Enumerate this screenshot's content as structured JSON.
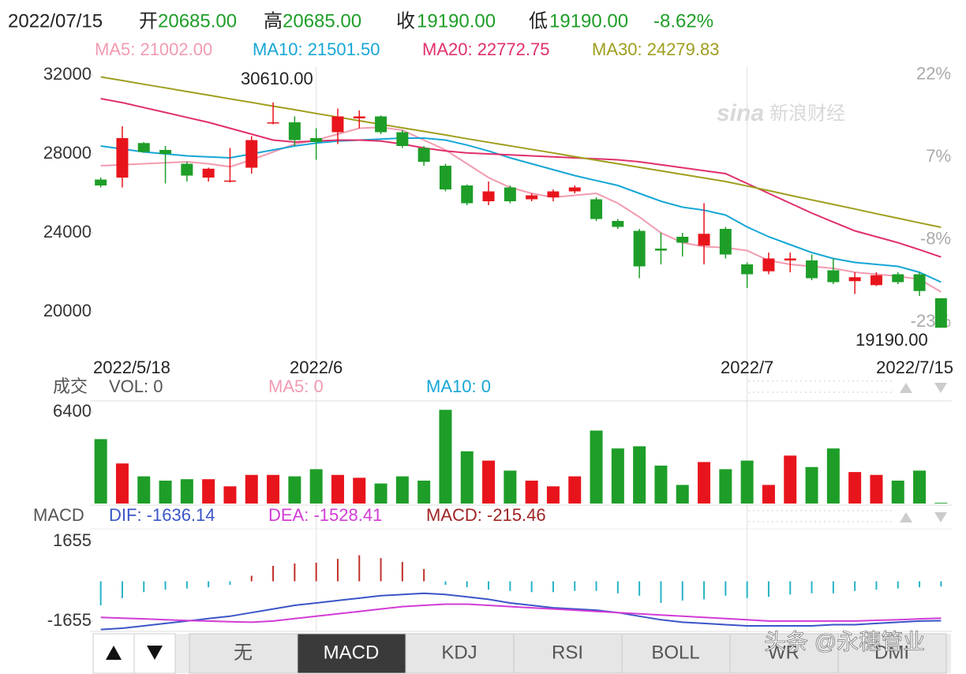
{
  "header": {
    "date": "2022/07/15",
    "items": [
      {
        "label": "开",
        "value": "20685.00"
      },
      {
        "label": "高",
        "value": "20685.00"
      },
      {
        "label": "收",
        "value": "19190.00"
      },
      {
        "label": "低",
        "value": "19190.00"
      }
    ],
    "change": "-8.62%"
  },
  "watermark": {
    "brand": "sina",
    "name": "新浪财经",
    "overlay": "头条 @永穗管业"
  },
  "chart_data": [
    {
      "type": "candlestick",
      "categories": [
        "2022/5/18",
        null,
        null,
        null,
        null,
        null,
        null,
        null,
        null,
        null,
        "2022/6",
        null,
        null,
        null,
        null,
        null,
        null,
        null,
        null,
        null,
        null,
        null,
        null,
        null,
        null,
        null,
        null,
        null,
        null,
        null,
        "2022/7",
        null,
        null,
        null,
        null,
        null,
        null,
        null,
        null,
        "2022/7/15"
      ],
      "open": [
        26700,
        26800,
        28550,
        28200,
        27500,
        26800,
        26600,
        27300,
        29550,
        29600,
        28800,
        29100,
        29800,
        29900,
        29100,
        28300,
        27400,
        26400,
        25600,
        26300,
        25700,
        25800,
        26100,
        25700,
        24600,
        24100,
        23200,
        23800,
        23350,
        24200,
        22400,
        22050,
        22600,
        22600,
        22100,
        21550,
        21350,
        21900,
        21900,
        20685
      ],
      "high": [
        26800,
        29400,
        28600,
        28400,
        27600,
        27300,
        28300,
        28900,
        30610,
        29900,
        29300,
        30300,
        30200,
        29950,
        29200,
        28400,
        27500,
        26450,
        26600,
        26400,
        26000,
        26200,
        26400,
        25800,
        24700,
        24200,
        24000,
        24000,
        25500,
        24300,
        22500,
        23000,
        23000,
        22900,
        22700,
        22000,
        22000,
        22000,
        22000,
        20685
      ],
      "low": [
        26300,
        26300,
        28050,
        26500,
        26600,
        26600,
        26550,
        27000,
        29500,
        28400,
        27700,
        28500,
        29300,
        29000,
        28300,
        27400,
        26100,
        25400,
        25400,
        25500,
        25600,
        25600,
        26000,
        24600,
        24200,
        21700,
        22400,
        22800,
        22400,
        22700,
        21200,
        21900,
        22000,
        21600,
        21400,
        20900,
        21300,
        21400,
        20800,
        19190
      ],
      "close": [
        26400,
        28800,
        28100,
        28000,
        26900,
        27250,
        26650,
        28700,
        29600,
        28700,
        28600,
        29900,
        29900,
        29100,
        28400,
        27600,
        26200,
        25500,
        26100,
        25600,
        25900,
        26100,
        26300,
        24700,
        24300,
        22300,
        23100,
        23500,
        23950,
        22900,
        21900,
        22700,
        22700,
        21700,
        21500,
        21750,
        21850,
        21500,
        21050,
        19190
      ],
      "up_color": "#e8141c",
      "down_color": "#1e9e28",
      "ylim": [
        19000,
        32400
      ],
      "yticks": [
        20000,
        24000,
        28000,
        32000
      ],
      "y2lim": [
        -24.7,
        23.4
      ],
      "y2ticks": [
        {
          "value": 22,
          "label": "22%"
        },
        {
          "value": 7,
          "label": "7%"
        },
        {
          "value": -8,
          "label": "-8%"
        },
        {
          "value": -23,
          "label": "-23%"
        }
      ],
      "annotations": [
        "30610.00",
        "19190.00"
      ],
      "series": [
        {
          "name": "MA5: 21002.00",
          "color": "#f29bb0",
          "values": [
            27400,
            27450,
            27500,
            27550,
            27600,
            27500,
            27350,
            27700,
            28100,
            28500,
            28700,
            29000,
            29300,
            29350,
            29200,
            28700,
            28200,
            27500,
            26800,
            26300,
            26000,
            25800,
            25900,
            26000,
            25500,
            24800,
            24000,
            23500,
            23300,
            23250,
            23100,
            22600,
            22400,
            22300,
            22200,
            22000,
            21900,
            21800,
            21650,
            21002
          ]
        },
        {
          "name": "MA10: 21501.50",
          "color": "#16a6d6",
          "values": [
            28400,
            28250,
            28100,
            28000,
            27900,
            27850,
            27800,
            28000,
            28200,
            28400,
            28550,
            28650,
            28700,
            28750,
            28800,
            28800,
            28700,
            28450,
            28150,
            27800,
            27500,
            27200,
            26900,
            26650,
            26400,
            26000,
            25600,
            25300,
            25150,
            24900,
            24300,
            23800,
            23400,
            23000,
            22700,
            22500,
            22400,
            22300,
            22000,
            21501.5
          ]
        },
        {
          "name": "MA20: 22772.75",
          "color": "#e0306a",
          "values": [
            30800,
            30600,
            30350,
            30100,
            29850,
            29600,
            29300,
            29000,
            28700,
            28600,
            28650,
            28700,
            28700,
            28650,
            28500,
            28300,
            28150,
            28050,
            28000,
            27950,
            27900,
            27850,
            27800,
            27750,
            27700,
            27600,
            27450,
            27300,
            27150,
            27000,
            26500,
            26000,
            25500,
            25000,
            24550,
            24100,
            23800,
            23500,
            23150,
            22772.75
          ]
        },
        {
          "name": "MA30: 24279.83",
          "color": "#9e9e1e",
          "values": [
            31900,
            31720,
            31530,
            31350,
            31160,
            30980,
            30790,
            30610,
            30420,
            30240,
            30050,
            29870,
            29680,
            29500,
            29320,
            29140,
            28960,
            28770,
            28590,
            28410,
            28230,
            28050,
            27860,
            27680,
            27500,
            27320,
            27140,
            26960,
            26780,
            26600,
            26370,
            26140,
            25900,
            25670,
            25440,
            25210,
            24970,
            24740,
            24510,
            24279.83
          ]
        }
      ]
    },
    {
      "type": "volume",
      "label": "成交",
      "name": "VOL: 0",
      "values": [
        4500,
        2800,
        1900,
        1600,
        1700,
        1700,
        1200,
        2000,
        2000,
        1900,
        2400,
        2000,
        1800,
        1400,
        1900,
        1600,
        6550,
        3650,
        3000,
        2300,
        1600,
        1200,
        1900,
        5100,
        3850,
        4000,
        2650,
        1300,
        2900,
        2400,
        3000,
        1300,
        3350,
        2550,
        3850,
        2200,
        2000,
        1600,
        2300,
        50
      ],
      "ylim": [
        0,
        6950
      ],
      "yticks": [
        6400
      ],
      "legend": [
        {
          "name": "MA5: 0",
          "color": "#f29bb0"
        },
        {
          "name": "MA10: 0",
          "color": "#16a6d6"
        }
      ]
    },
    {
      "type": "macd",
      "label": "MACD",
      "ylim": [
        -2080,
        2015
      ],
      "yticks": [
        1655,
        -1655
      ],
      "up_color": "#c0302a",
      "down_color": "#26b3c6",
      "series": [
        {
          "name": "DIF: -1636.14",
          "color": "#3a55c8",
          "values": [
            -2000,
            -1950,
            -1850,
            -1750,
            -1650,
            -1550,
            -1450,
            -1300,
            -1150,
            -1000,
            -900,
            -800,
            -700,
            -600,
            -550,
            -500,
            -550,
            -650,
            -750,
            -900,
            -1000,
            -1100,
            -1150,
            -1200,
            -1300,
            -1450,
            -1600,
            -1700,
            -1750,
            -1800,
            -1850,
            -1850,
            -1850,
            -1850,
            -1800,
            -1800,
            -1750,
            -1700,
            -1650,
            -1636.14
          ]
        },
        {
          "name": "DEA: -1528.41",
          "color": "#d23cd6",
          "values": [
            -1500,
            -1530,
            -1560,
            -1600,
            -1630,
            -1650,
            -1680,
            -1700,
            -1650,
            -1550,
            -1450,
            -1350,
            -1250,
            -1150,
            -1050,
            -1000,
            -950,
            -950,
            -1000,
            -1050,
            -1100,
            -1150,
            -1200,
            -1250,
            -1300,
            -1350,
            -1400,
            -1450,
            -1500,
            -1550,
            -1600,
            -1650,
            -1650,
            -1650,
            -1650,
            -1650,
            -1620,
            -1600,
            -1560,
            -1528.41
          ]
        },
        {
          "name": "MACD: -215.46",
          "color": "#a02424",
          "values": [
            -1000,
            -700,
            -450,
            -350,
            -300,
            -250,
            -150,
            230,
            640,
            740,
            770,
            930,
            1080,
            960,
            800,
            510,
            -150,
            -250,
            -350,
            -400,
            -450,
            -450,
            -400,
            -400,
            -500,
            -600,
            -900,
            -800,
            -750,
            -600,
            -700,
            -650,
            -550,
            -500,
            -500,
            -400,
            -350,
            -300,
            -250,
            -215.46
          ]
        }
      ]
    }
  ],
  "tabs": [
    "无",
    "MACD",
    "KDJ",
    "RSI",
    "BOLL",
    "WR",
    "DMI"
  ],
  "active_tab": 1
}
